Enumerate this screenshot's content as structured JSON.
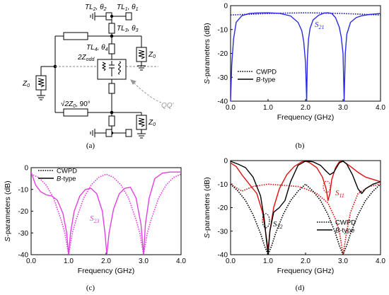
{
  "panels": {
    "a": {
      "label": "(a)"
    },
    "b": {
      "label": "(b)"
    },
    "c": {
      "label": "(c)"
    },
    "d": {
      "label": "(d)"
    }
  },
  "schematic": {
    "tl2": "TL",
    "tl2_sub": "2",
    "tl2_theta": ", θ",
    "tl2_theta_sub": "2",
    "tl1": "TL",
    "tl1_sub": "1",
    "tl1_theta": ", θ",
    "tl1_theta_sub": "1",
    "tl3": "TL",
    "tl3_sub": "3",
    "tl3_theta": ", θ",
    "tl3_theta_sub": "3",
    "tl4": "TL",
    "tl4_sub": "4",
    "tl4_theta": ", θ",
    "tl4_theta_sub": "4",
    "z_odd": "2Z",
    "z_odd_sub": "odd",
    "z0": "Z",
    "z0_sub": "0",
    "sqrt2": "√2Z",
    "sqrt2_sub": "0",
    "sqrt2_tail": ", 90°",
    "qq": "QQ′"
  },
  "chart_data": [
    {
      "id": "b",
      "type": "line",
      "xlabel": "Frequency (GHz)",
      "ylabel": "S-parameters (dB)",
      "xlim": [
        0,
        4
      ],
      "ylim": [
        -40,
        0
      ],
      "xticks": [
        "0.0",
        "1.0",
        "2.0",
        "3.0",
        "4.0"
      ],
      "yticks": [
        "0",
        "-10",
        "-20",
        "-30",
        "-40"
      ],
      "legend": {
        "position": "bottom-left",
        "entries": [
          "CWPD",
          "B-type"
        ]
      },
      "annotations": [
        {
          "text": "S",
          "sub": "21",
          "color": "#2a2ae6"
        }
      ],
      "series": [
        {
          "name": "CWPD",
          "style": "dotted",
          "color": "#1a1a9a",
          "x": [
            0,
            0.5,
            1,
            1.5,
            2,
            2.5,
            3,
            3.5,
            4
          ],
          "y": [
            -3.9,
            -3.6,
            -3.3,
            -3.1,
            -3.0,
            -3.1,
            -3.3,
            -3.6,
            -3.9
          ]
        },
        {
          "name": "B-type",
          "style": "solid",
          "color": "#2a2ae6",
          "x": [
            0,
            0.03,
            0.08,
            0.15,
            0.3,
            0.5,
            0.7,
            1,
            1.3,
            1.6,
            1.8,
            1.9,
            1.95,
            2.0,
            2.03,
            2.05,
            2.08,
            2.12,
            2.2,
            2.35,
            2.5,
            2.6,
            2.7,
            2.8,
            2.9,
            2.95,
            3.0,
            3.03,
            3.06,
            3.1,
            3.2,
            3.35,
            3.5,
            3.7,
            4.0
          ],
          "y": [
            -40,
            -25,
            -14,
            -7,
            -4.2,
            -3.3,
            -3.05,
            -3.0,
            -3.2,
            -4.3,
            -7,
            -10.5,
            -15,
            -24,
            -40,
            -22,
            -14,
            -9.5,
            -6,
            -4,
            -3.1,
            -3.0,
            -3.3,
            -5,
            -9,
            -13,
            -20,
            -40,
            -20,
            -12,
            -7,
            -5,
            -4.2,
            -3.7,
            -3.3
          ]
        }
      ]
    },
    {
      "id": "c",
      "type": "line",
      "xlabel": "Frequency (GHz)",
      "ylabel": "S-parameters (dB)",
      "xlim": [
        0,
        4
      ],
      "ylim": [
        -40,
        0
      ],
      "xticks": [
        "0.0",
        "1.0",
        "2.0",
        "3.0",
        "4.0"
      ],
      "yticks": [
        "0",
        "-10",
        "-20",
        "-30",
        "-40"
      ],
      "legend": {
        "position": "top-left",
        "entries": [
          "CWPD",
          "B-type"
        ]
      },
      "annotations": [
        {
          "text": "S",
          "sub": "23",
          "color": "#e040e0"
        }
      ],
      "series": [
        {
          "name": "CWPD",
          "style": "dotted",
          "color": "#e040e0",
          "x": [
            0,
            0.2,
            0.4,
            0.6,
            0.8,
            0.9,
            1.0,
            1.1,
            1.2,
            1.4,
            1.6,
            1.8,
            2.0,
            2.2,
            2.4,
            2.6,
            2.8,
            2.9,
            3.0,
            3.1,
            3.2,
            3.4,
            3.6,
            3.8,
            4.0
          ],
          "y": [
            -3,
            -4.5,
            -8,
            -14,
            -24,
            -30,
            -40,
            -30,
            -24,
            -14,
            -8,
            -4.5,
            -3,
            -4.5,
            -8,
            -14,
            -24,
            -30,
            -40,
            -30,
            -24,
            -14,
            -8,
            -4.5,
            -3
          ]
        },
        {
          "name": "B-type",
          "style": "solid",
          "color": "#e040e0",
          "x": [
            0,
            0.05,
            0.12,
            0.25,
            0.4,
            0.55,
            0.7,
            0.85,
            0.95,
            1.0,
            1.05,
            1.15,
            1.3,
            1.45,
            1.6,
            1.75,
            1.9,
            1.97,
            2.02,
            2.08,
            2.2,
            2.35,
            2.5,
            2.65,
            2.8,
            2.93,
            3.0,
            3.05,
            3.15,
            3.3,
            3.5,
            3.7,
            4.0
          ],
          "y": [
            -2,
            -4.5,
            -8,
            -11,
            -12.5,
            -13,
            -15,
            -21,
            -30,
            -40,
            -30,
            -20,
            -13,
            -10,
            -9.5,
            -12,
            -20,
            -30,
            -40,
            -30,
            -19,
            -12,
            -9.5,
            -9,
            -14,
            -26,
            -40,
            -26,
            -14,
            -5,
            -2.5,
            -2,
            -2
          ]
        }
      ]
    },
    {
      "id": "d",
      "type": "line",
      "xlabel": "Frequency (GHz)",
      "ylabel": "S-parameters (dB)",
      "xlim": [
        0,
        4
      ],
      "ylim": [
        -40,
        0
      ],
      "xticks": [
        "0.0",
        "1.0",
        "2.0",
        "3.0",
        "4.0"
      ],
      "yticks": [
        "0",
        "-10",
        "-20",
        "-30",
        "-40"
      ],
      "legend": {
        "position": "bottom-right",
        "entries": [
          "CWPD",
          "B-type"
        ]
      },
      "annotations": [
        {
          "text": "S",
          "sub": "11",
          "color": "#e01010"
        },
        {
          "text": "S",
          "sub": "22",
          "color": "#000000"
        }
      ],
      "series": [
        {
          "name": "CWPD S11",
          "style": "dotted",
          "color": "#e01010",
          "x": [
            0,
            0.3,
            0.6,
            1.0,
            1.4,
            1.8,
            2.0,
            2.3,
            2.6,
            2.8,
            2.9,
            3.0,
            3.1,
            3.2,
            3.4,
            3.7,
            4.0
          ],
          "y": [
            -10,
            -13,
            -11,
            -10,
            -10.5,
            -11,
            -12,
            -14,
            -18,
            -25,
            -30,
            -40,
            -30,
            -22,
            -14,
            -11,
            -10
          ]
        },
        {
          "name": "CWPD S22",
          "style": "dotted",
          "color": "#000000",
          "x": [
            0,
            0.2,
            0.4,
            0.6,
            0.8,
            0.9,
            1.0,
            1.1,
            1.2,
            1.4,
            1.6,
            1.8,
            2.0,
            2.2,
            2.4,
            2.6,
            2.8,
            2.9,
            3.0,
            3.1,
            3.2,
            3.4,
            3.6,
            3.8,
            4.0
          ],
          "y": [
            -10,
            -13,
            -17,
            -23,
            -31,
            -36,
            -40,
            -36,
            -31,
            -23,
            -17,
            -13,
            -10,
            -13,
            -17,
            -23,
            -31,
            -36,
            -40,
            -36,
            -31,
            -23,
            -17,
            -13,
            -10
          ]
        },
        {
          "name": "B-type S11",
          "style": "solid",
          "color": "#e01010",
          "x": [
            0,
            0.15,
            0.3,
            0.5,
            0.7,
            0.85,
            0.95,
            1.0,
            1.05,
            1.15,
            1.3,
            1.5,
            1.7,
            1.9,
            2.0,
            2.1,
            2.3,
            2.45,
            2.55,
            2.6,
            2.65,
            2.7,
            2.8,
            2.9,
            3.0,
            3.2,
            3.4,
            3.6,
            3.8,
            4.0
          ],
          "y": [
            -1,
            -2.5,
            -6,
            -10,
            -14,
            -22,
            -32,
            -38,
            -30,
            -20,
            -12,
            -6,
            -2.5,
            -0.5,
            -0.3,
            -0.8,
            -3,
            -7,
            -12,
            -17,
            -14,
            -8,
            -3,
            -0.5,
            -0.3,
            -2.5,
            -5,
            -7,
            -8,
            -9
          ]
        },
        {
          "name": "B-type S22",
          "style": "solid",
          "color": "#000000",
          "x": [
            0,
            0.2,
            0.4,
            0.6,
            0.8,
            0.9,
            0.95,
            1.0,
            1.05,
            1.15,
            1.3,
            1.45,
            1.6,
            1.8,
            2.0,
            2.2,
            2.4,
            2.55,
            2.65,
            2.75,
            2.9,
            3.0,
            3.1,
            3.25,
            3.4,
            3.5,
            3.6,
            3.8,
            4.0
          ],
          "y": [
            -0.3,
            -1.5,
            -3,
            -7,
            -15,
            -25,
            -33,
            -40,
            -30,
            -22,
            -20,
            -17,
            -9,
            -2,
            -0.2,
            -0.5,
            -2,
            -4.5,
            -6,
            -5,
            -1,
            -0.2,
            -1.5,
            -6,
            -12,
            -14,
            -12,
            -10,
            -9
          ]
        }
      ]
    }
  ]
}
